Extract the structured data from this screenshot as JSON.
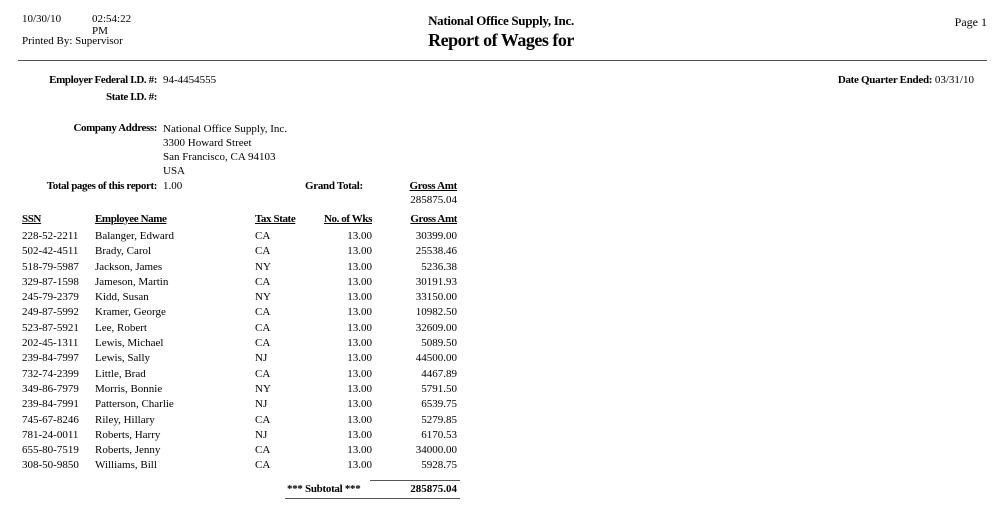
{
  "page": {
    "printed_date": "10/30/10",
    "printed_time": "02:54:22 PM",
    "printed_by_label": "Printed By:",
    "printed_by": "Supervisor",
    "company_name": "National Office Supply, Inc.",
    "report_title": "Report of Wages for",
    "page_label": "Page 1"
  },
  "info": {
    "employer_federal_id_label": "Employer Federal I.D. #:",
    "employer_federal_id": "94-4454555",
    "state_id_label": "State I.D. #:",
    "state_id": "",
    "date_quarter_ended_label": "Date Quarter Ended:",
    "date_quarter_ended": "03/31/10",
    "company_address_label": "Company Address:",
    "company_address_lines": [
      "National Office Supply, Inc.",
      "3300 Howard Street",
      "San Francisco, CA 94103",
      "USA"
    ],
    "total_pages_label": "Total pages of this report:",
    "total_pages": "1.00",
    "grand_total_label": "Grand Total:",
    "grand_total_column_label": "Gross Amt",
    "grand_total_value": "285875.04"
  },
  "table": {
    "columns": [
      "SSN",
      "Employee Name",
      "Tax State",
      "No. of Wks",
      "Gross Amt"
    ],
    "rows": [
      {
        "ssn": "228-52-2211",
        "name": "Balanger, Edward",
        "tax_state": "CA",
        "weeks": "13.00",
        "gross": "30399.00"
      },
      {
        "ssn": "502-42-4511",
        "name": "Brady, Carol",
        "tax_state": "CA",
        "weeks": "13.00",
        "gross": "25538.46"
      },
      {
        "ssn": "518-79-5987",
        "name": "Jackson, James",
        "tax_state": "NY",
        "weeks": "13.00",
        "gross": "5236.38"
      },
      {
        "ssn": "329-87-1598",
        "name": "Jameson, Martin",
        "tax_state": "CA",
        "weeks": "13.00",
        "gross": "30191.93"
      },
      {
        "ssn": "245-79-2379",
        "name": "Kidd, Susan",
        "tax_state": "NY",
        "weeks": "13.00",
        "gross": "33150.00"
      },
      {
        "ssn": "249-87-5992",
        "name": "Kramer, George",
        "tax_state": "CA",
        "weeks": "13.00",
        "gross": "10982.50"
      },
      {
        "ssn": "523-87-5921",
        "name": "Lee, Robert",
        "tax_state": "CA",
        "weeks": "13.00",
        "gross": "32609.00"
      },
      {
        "ssn": "202-45-1311",
        "name": "Lewis, Michael",
        "tax_state": "CA",
        "weeks": "13.00",
        "gross": "5089.50"
      },
      {
        "ssn": "239-84-7997",
        "name": "Lewis, Sally",
        "tax_state": "NJ",
        "weeks": "13.00",
        "gross": "44500.00"
      },
      {
        "ssn": "732-74-2399",
        "name": "Little, Brad",
        "tax_state": "CA",
        "weeks": "13.00",
        "gross": "4467.89"
      },
      {
        "ssn": "349-86-7979",
        "name": "Morris, Bonnie",
        "tax_state": "NY",
        "weeks": "13.00",
        "gross": "5791.50"
      },
      {
        "ssn": "239-84-7991",
        "name": "Patterson, Charlie",
        "tax_state": "NJ",
        "weeks": "13.00",
        "gross": "6539.75"
      },
      {
        "ssn": "745-67-8246",
        "name": "Riley, Hillary",
        "tax_state": "CA",
        "weeks": "13.00",
        "gross": "5279.85"
      },
      {
        "ssn": "781-24-0011",
        "name": "Roberts, Harry",
        "tax_state": "NJ",
        "weeks": "13.00",
        "gross": "6170.53"
      },
      {
        "ssn": "655-80-7519",
        "name": "Roberts, Jenny",
        "tax_state": "CA",
        "weeks": "13.00",
        "gross": "34000.00"
      },
      {
        "ssn": "308-50-9850",
        "name": "Williams, Bill",
        "tax_state": "CA",
        "weeks": "13.00",
        "gross": "5928.75"
      }
    ],
    "subtotal_label": "*** Subtotal ***",
    "subtotal_value": "285875.04"
  }
}
